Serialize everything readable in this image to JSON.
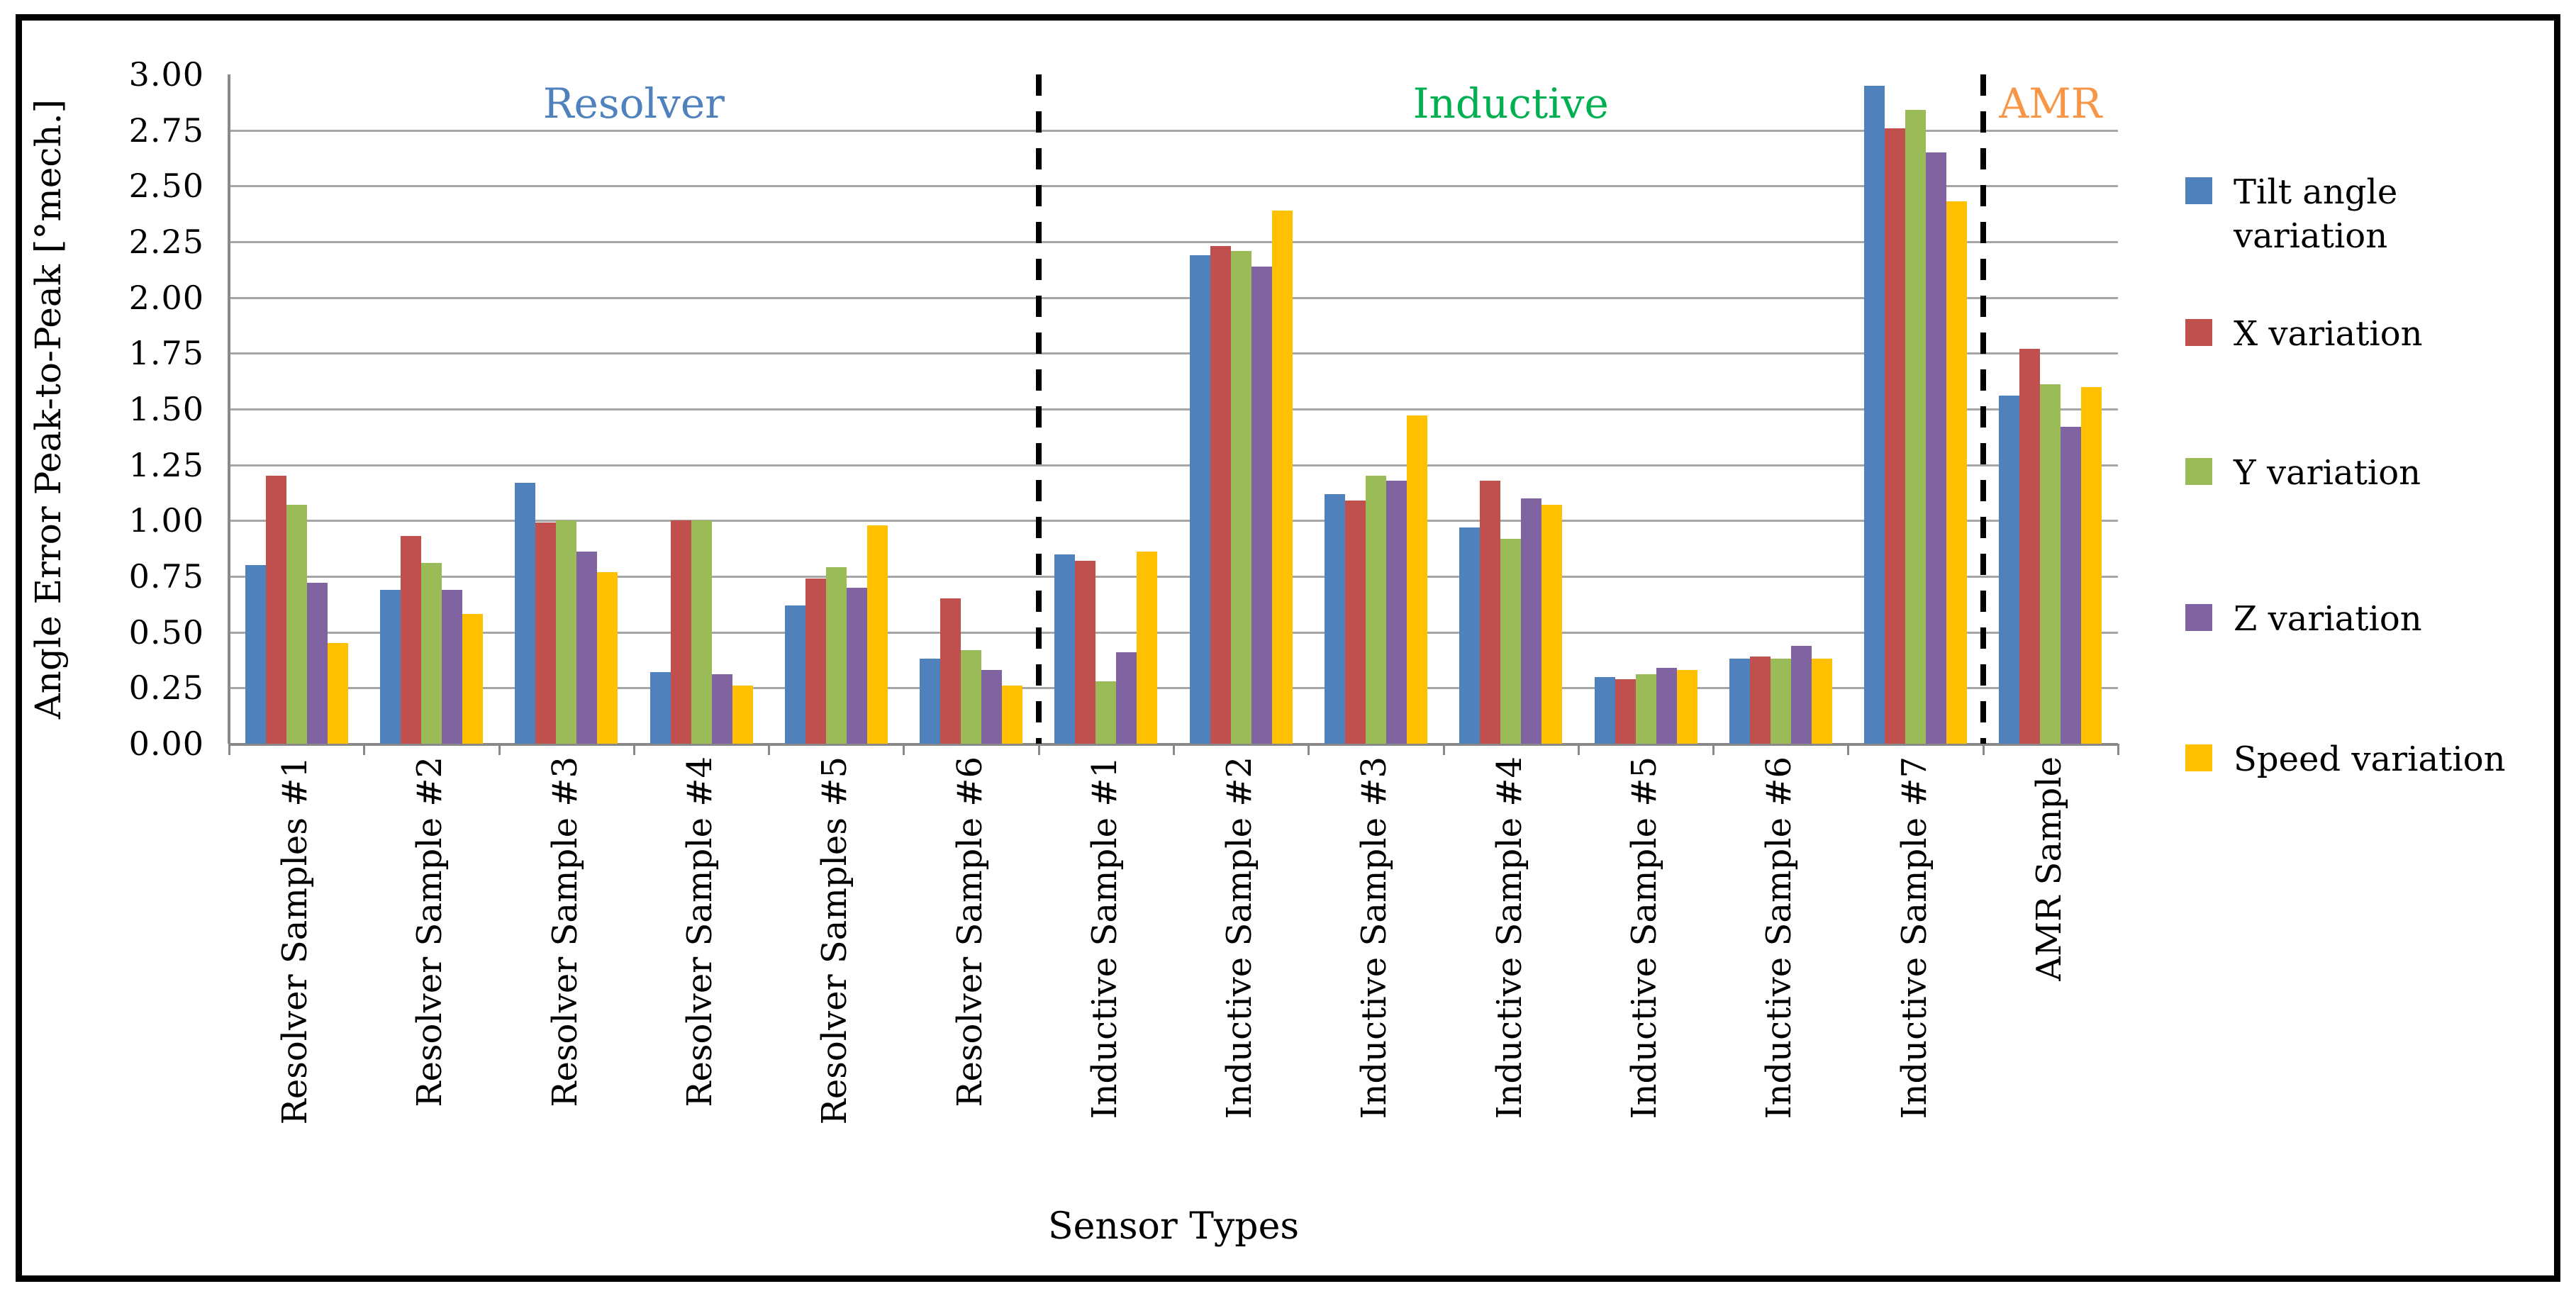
{
  "chart_data": {
    "type": "bar",
    "title": "",
    "xlabel": "Sensor Types",
    "ylabel": "Angle Error Peak-to-Peak [°mech.]",
    "ylim": [
      0,
      3
    ],
    "ytick_step": 0.25,
    "grid": "horizontal-gridlines-every-0.25",
    "legend_position": "right",
    "categories": [
      "Resolver Samples #1",
      "Resolver Sample #2",
      "Resolver Sample #3",
      "Resolver Sample #4",
      "Resolver Samples #5",
      "Resolver Sample #6",
      "Inductive Sample #1",
      "Inductive Sample #2",
      "Inductive Sample #3",
      "Inductive Sample #4",
      "Inductive Sample #5",
      "Inductive Sample #6",
      "Inductive Sample #7",
      "AMR Sample"
    ],
    "series": [
      {
        "name": "Tilt angle variation",
        "color": "#4F81BD",
        "values": [
          0.8,
          0.69,
          1.17,
          0.32,
          0.62,
          0.38,
          0.85,
          2.19,
          1.12,
          0.97,
          0.3,
          0.38,
          2.95,
          1.56
        ]
      },
      {
        "name": "X variation",
        "color": "#C0504D",
        "values": [
          1.2,
          0.93,
          0.99,
          1.0,
          0.74,
          0.65,
          0.82,
          2.23,
          1.09,
          1.18,
          0.29,
          0.39,
          2.76,
          1.77
        ]
      },
      {
        "name": "Y variation",
        "color": "#9BBB59",
        "values": [
          1.07,
          0.81,
          1.0,
          1.0,
          0.79,
          0.42,
          0.28,
          2.21,
          1.2,
          0.92,
          0.31,
          0.38,
          2.84,
          1.61
        ]
      },
      {
        "name": "Z variation",
        "color": "#8064A2",
        "values": [
          0.72,
          0.69,
          0.86,
          0.31,
          0.7,
          0.33,
          0.41,
          2.14,
          1.18,
          1.1,
          0.34,
          0.44,
          2.65,
          1.42
        ]
      },
      {
        "name": "Speed variation",
        "color": "#FFC000",
        "values": [
          0.45,
          0.58,
          0.77,
          0.26,
          0.98,
          0.26,
          0.86,
          2.39,
          1.47,
          1.07,
          0.33,
          0.38,
          2.43,
          1.6
        ]
      }
    ],
    "sections": [
      {
        "label": "Resolver",
        "color": "#4F81BD",
        "from": 0,
        "to": 5
      },
      {
        "label": "Inductive",
        "color": "#00B050",
        "from": 6,
        "to": 12
      },
      {
        "label": "AMR",
        "color": "#F79646",
        "from": 13,
        "to": 13
      }
    ],
    "separators_after_category": [
      5,
      12
    ]
  }
}
